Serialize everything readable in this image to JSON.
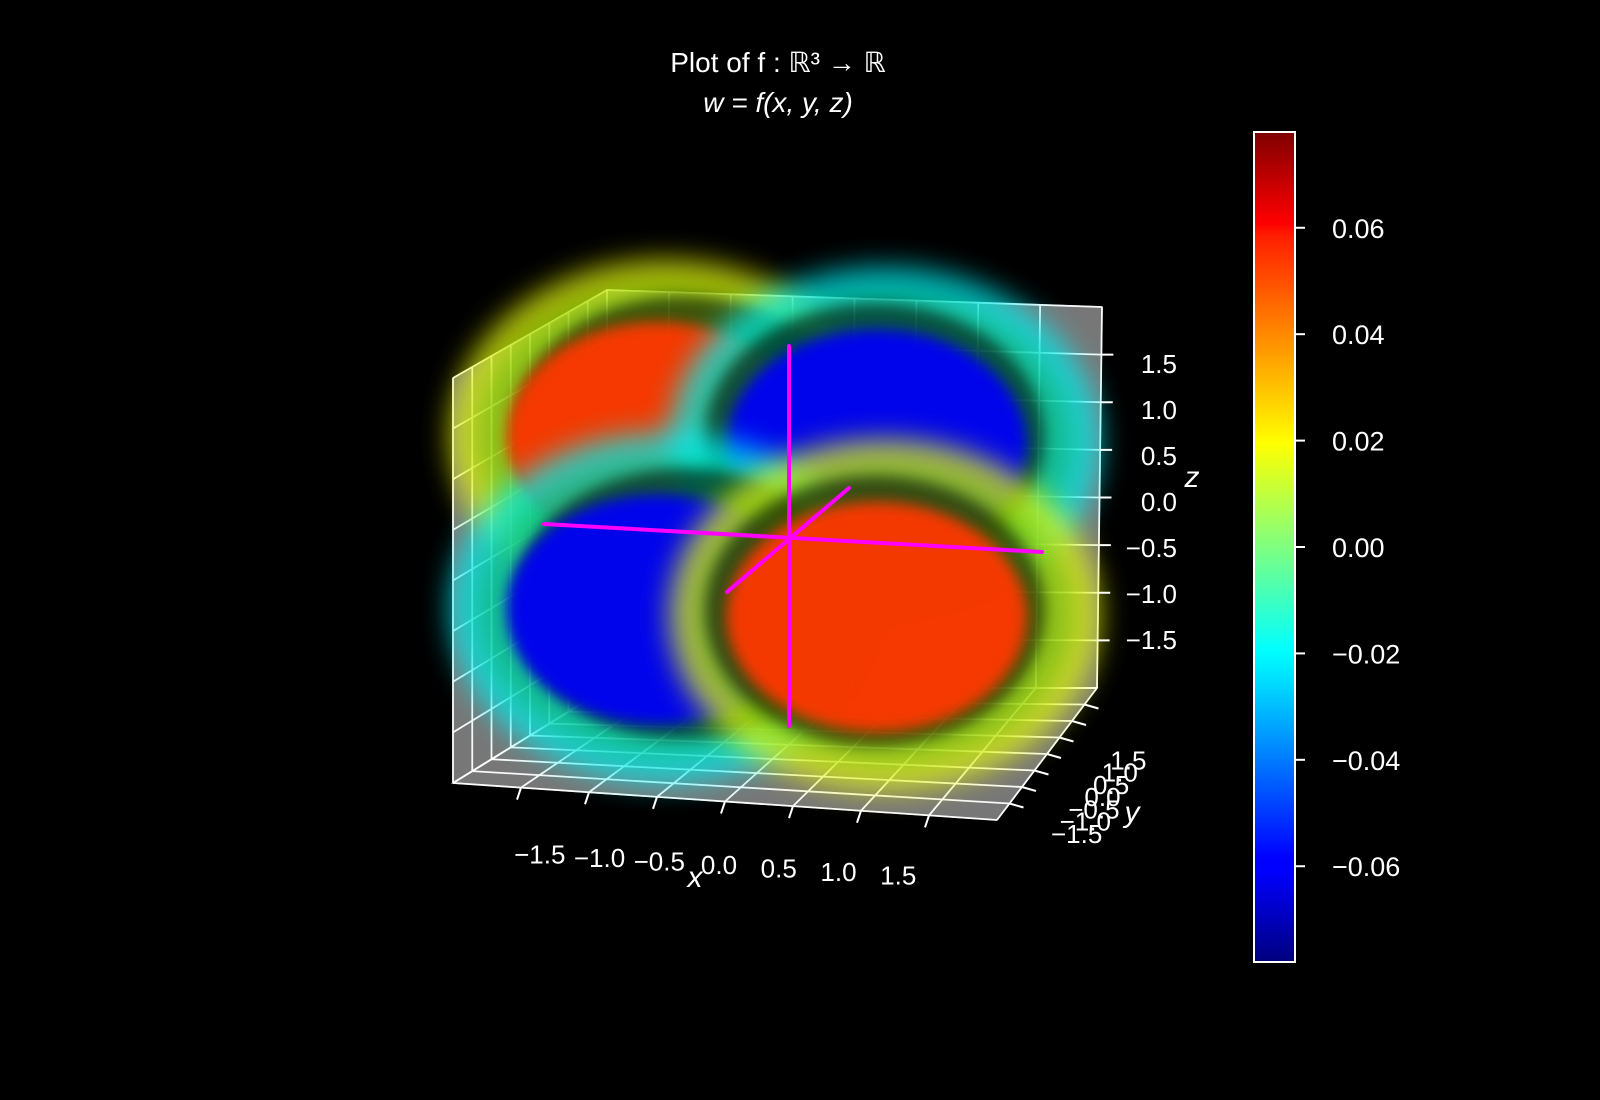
{
  "chart_data": {
    "type": "scatter",
    "projection": "3d",
    "title": "Plot of f : ℝ³ → ℝ",
    "subtitle": "w = f(x, y, z)",
    "xlabel": "x",
    "ylabel": "y",
    "zlabel": "z",
    "xlim": [
      -2,
      2
    ],
    "ylim": [
      -2,
      2
    ],
    "zlim": [
      -2,
      2
    ],
    "x_ticks": [
      "−1.5",
      "−1.0",
      "−0.5",
      "0.0",
      "0.5",
      "1.0",
      "1.5"
    ],
    "y_ticks": [
      "−1.5",
      "−1.0",
      "−0.5",
      "0.0",
      "0.5",
      "1.0",
      "1.5"
    ],
    "z_ticks": [
      "−1.5",
      "−1.0",
      "−0.5",
      "0.0",
      "0.5",
      "1.0",
      "1.5"
    ],
    "grid": true,
    "pane_color": "#777777",
    "background": "#000000",
    "colormap": "jet",
    "color_range": [
      -0.078,
      0.078
    ],
    "colorbar_ticks": [
      "0.06",
      "0.04",
      "0.02",
      "0.00",
      "−0.02",
      "−0.04",
      "−0.06"
    ],
    "colorbar_tick_values": [
      0.06,
      0.04,
      0.02,
      0.0,
      -0.02,
      -0.04,
      -0.06
    ],
    "reference_axes_color": "#ff00ff",
    "lobes": [
      {
        "x": -0.9,
        "y": 0.0,
        "z": 0.75,
        "w": 0.05
      },
      {
        "x": 0.9,
        "y": 0.0,
        "z": 0.75,
        "w": -0.06
      },
      {
        "x": -0.9,
        "y": 0.0,
        "z": -0.75,
        "w": -0.06
      },
      {
        "x": 0.9,
        "y": 0.0,
        "z": -0.75,
        "w": 0.05
      }
    ]
  }
}
